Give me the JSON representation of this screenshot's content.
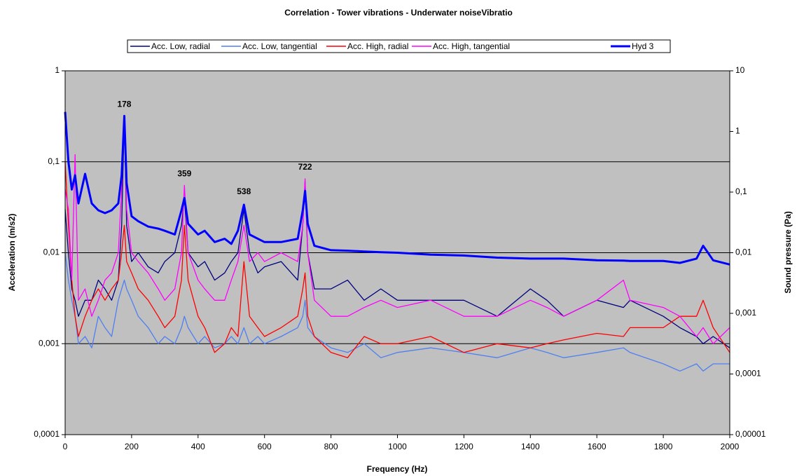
{
  "chart_data": {
    "type": "line",
    "title": "Correlation - Tower vibrations - Underwater noiseVibratio",
    "x_label": "Frequency (Hz)",
    "y_label": "Acceleration (m/s2)",
    "y2_label": "Sound pressure (Pa)",
    "yscale": "log",
    "y2scale": "log",
    "grid": true,
    "legend": "top",
    "background": "#c0c0c0",
    "x": [
      0,
      10,
      20,
      30,
      40,
      60,
      80,
      100,
      120,
      140,
      160,
      170,
      178,
      185,
      200,
      220,
      250,
      280,
      300,
      330,
      350,
      359,
      370,
      400,
      420,
      450,
      480,
      500,
      520,
      538,
      555,
      580,
      600,
      650,
      700,
      715,
      722,
      730,
      750,
      800,
      850,
      900,
      950,
      1000,
      1100,
      1200,
      1300,
      1400,
      1450,
      1500,
      1600,
      1680,
      1700,
      1800,
      1850,
      1900,
      1920,
      1950,
      2000
    ],
    "xlim": [
      0,
      2000
    ],
    "xticks": [
      0,
      200,
      400,
      600,
      800,
      1000,
      1200,
      1400,
      1600,
      1800,
      2000
    ],
    "ylim": [
      0.0001,
      1
    ],
    "yticks": [
      {
        "value": 0.0001,
        "label": "0,0001"
      },
      {
        "value": 0.001,
        "label": "0,001"
      },
      {
        "value": 0.01,
        "label": "0,01"
      },
      {
        "value": 0.1,
        "label": "0,1"
      },
      1
    ],
    "y2lim": [
      1e-05,
      10
    ],
    "y2ticks": [
      {
        "value": 1e-05,
        "label": "0,00001"
      },
      {
        "value": 0.0001,
        "label": "0,0001"
      },
      {
        "value": 0.001,
        "label": "0,001"
      },
      {
        "value": 0.01,
        "label": "0,01"
      },
      {
        "value": 0.1,
        "label": "0,1"
      },
      1,
      10
    ],
    "series": [
      {
        "name": "Acc. Low, radial",
        "color": "#000080",
        "values": [
          0.03,
          0.01,
          0.004,
          0.003,
          0.002,
          0.003,
          0.003,
          0.005,
          0.004,
          0.003,
          0.005,
          0.02,
          0.3,
          0.02,
          0.008,
          0.01,
          0.007,
          0.006,
          0.008,
          0.01,
          0.02,
          0.04,
          0.01,
          0.007,
          0.008,
          0.005,
          0.006,
          0.008,
          0.01,
          0.03,
          0.01,
          0.006,
          0.007,
          0.008,
          0.005,
          0.02,
          0.06,
          0.01,
          0.004,
          0.004,
          0.005,
          0.003,
          0.004,
          0.003,
          0.003,
          0.003,
          0.002,
          0.004,
          0.003,
          0.002,
          0.003,
          0.0025,
          0.003,
          0.002,
          0.0015,
          0.0012,
          0.001,
          0.0012,
          0.0009
        ]
      },
      {
        "name": "Acc. Low, tangential",
        "color": "#4f7ff0",
        "values": [
          0.01,
          0.005,
          0.003,
          0.002,
          0.001,
          0.0012,
          0.0009,
          0.002,
          0.0015,
          0.0012,
          0.003,
          0.004,
          0.005,
          0.004,
          0.003,
          0.002,
          0.0015,
          0.001,
          0.0012,
          0.001,
          0.0015,
          0.002,
          0.0015,
          0.001,
          0.0012,
          0.0009,
          0.001,
          0.0012,
          0.001,
          0.0015,
          0.001,
          0.0012,
          0.001,
          0.0012,
          0.0015,
          0.002,
          0.003,
          0.0015,
          0.0012,
          0.0009,
          0.0008,
          0.001,
          0.0007,
          0.0008,
          0.0009,
          0.0008,
          0.0007,
          0.0009,
          0.0008,
          0.0007,
          0.0008,
          0.0009,
          0.0008,
          0.0006,
          0.0005,
          0.0006,
          0.0005,
          0.0006,
          0.0006
        ]
      },
      {
        "name": "Acc. High, radial",
        "color": "#ff0000",
        "values": [
          0.1,
          0.02,
          0.005,
          0.002,
          0.0012,
          0.002,
          0.003,
          0.004,
          0.003,
          0.004,
          0.005,
          0.01,
          0.02,
          0.008,
          0.006,
          0.004,
          0.003,
          0.002,
          0.0015,
          0.002,
          0.005,
          0.02,
          0.005,
          0.002,
          0.0015,
          0.0008,
          0.001,
          0.0015,
          0.0012,
          0.008,
          0.002,
          0.0015,
          0.0012,
          0.0015,
          0.002,
          0.004,
          0.006,
          0.002,
          0.0012,
          0.0008,
          0.0007,
          0.0012,
          0.001,
          0.001,
          0.0012,
          0.0008,
          0.001,
          0.0009,
          0.001,
          0.0011,
          0.0013,
          0.0012,
          0.0015,
          0.0015,
          0.002,
          0.002,
          0.003,
          0.0015,
          0.0008
        ]
      },
      {
        "name": "Acc. High, tangential",
        "color": "#ff00ff",
        "values": [
          0.05,
          0.03,
          0.005,
          0.12,
          0.003,
          0.004,
          0.002,
          0.003,
          0.005,
          0.006,
          0.01,
          0.05,
          0.32,
          0.03,
          0.01,
          0.008,
          0.006,
          0.004,
          0.003,
          0.004,
          0.01,
          0.055,
          0.01,
          0.005,
          0.004,
          0.003,
          0.003,
          0.005,
          0.008,
          0.02,
          0.008,
          0.01,
          0.008,
          0.01,
          0.008,
          0.02,
          0.065,
          0.01,
          0.003,
          0.002,
          0.002,
          0.0025,
          0.003,
          0.0025,
          0.003,
          0.002,
          0.002,
          0.003,
          0.0025,
          0.002,
          0.003,
          0.005,
          0.003,
          0.0025,
          0.002,
          0.0012,
          0.0015,
          0.001,
          0.0015
        ]
      },
      {
        "name": "Hyd 3",
        "color": "#0000ff",
        "axis": "y2",
        "width": 3,
        "values": [
          2.1,
          0.32,
          0.11,
          0.19,
          0.065,
          0.2,
          0.065,
          0.05,
          0.045,
          0.05,
          0.065,
          0.19,
          1.8,
          0.14,
          0.04,
          0.033,
          0.027,
          0.025,
          0.023,
          0.02,
          0.05,
          0.08,
          0.03,
          0.02,
          0.023,
          0.015,
          0.017,
          0.014,
          0.023,
          0.062,
          0.02,
          0.017,
          0.015,
          0.015,
          0.017,
          0.05,
          0.105,
          0.03,
          0.013,
          0.011,
          0.0108,
          0.0105,
          0.0102,
          0.01,
          0.0093,
          0.009,
          0.0083,
          0.008,
          0.008,
          0.008,
          0.0075,
          0.0074,
          0.0073,
          0.0073,
          0.0068,
          0.008,
          0.013,
          0.0075,
          0.0064
        ]
      }
    ],
    "annotations": [
      {
        "text": "178",
        "x": 178,
        "y": 0.32
      },
      {
        "text": "359",
        "x": 359,
        "y": 0.055
      },
      {
        "text": "538",
        "x": 538,
        "y": 0.035
      },
      {
        "text": "722",
        "x": 722,
        "y": 0.065
      }
    ]
  }
}
